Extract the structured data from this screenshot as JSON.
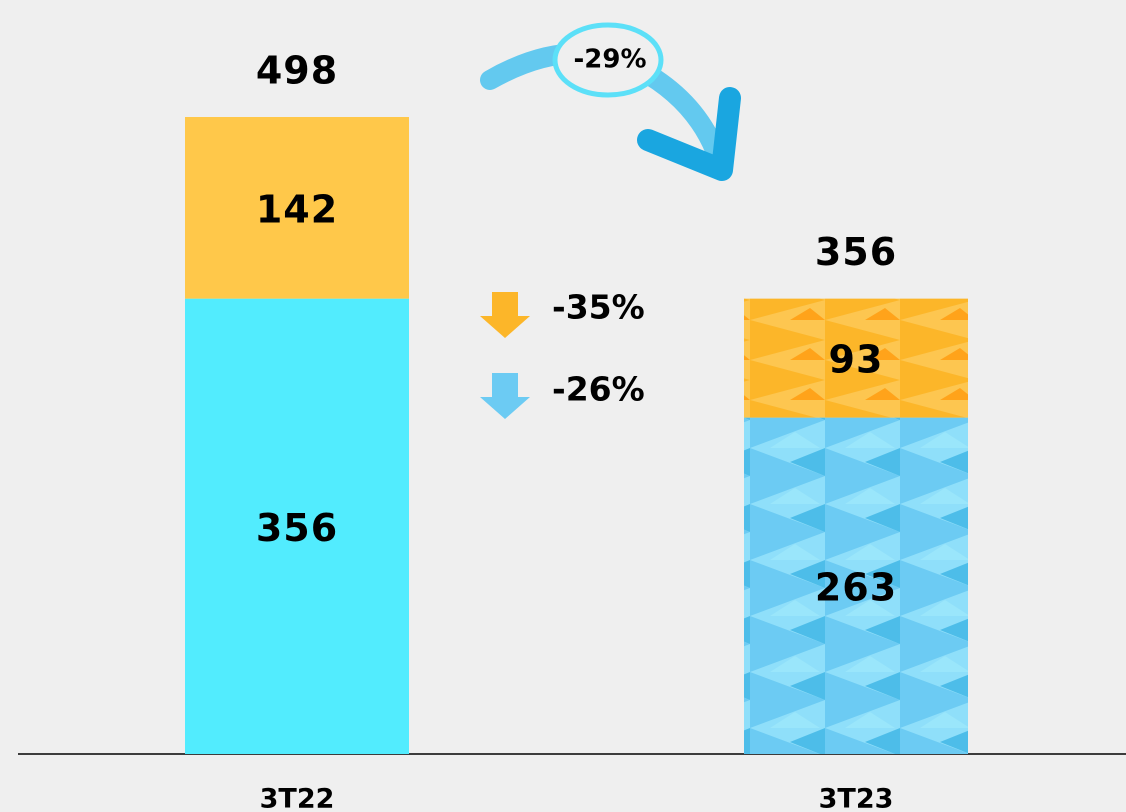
{
  "chart_data": {
    "type": "stacked_bar",
    "categories": [
      "3T22",
      "3T23"
    ],
    "series": [
      {
        "color": "#52ecfe",
        "values": [
          356,
          263
        ]
      },
      {
        "color": "#ffc84a",
        "values": [
          142,
          93
        ]
      }
    ],
    "totals": [
      498,
      356
    ],
    "annotations": [
      "-29%",
      "-35%",
      "-26%"
    ]
  }
}
